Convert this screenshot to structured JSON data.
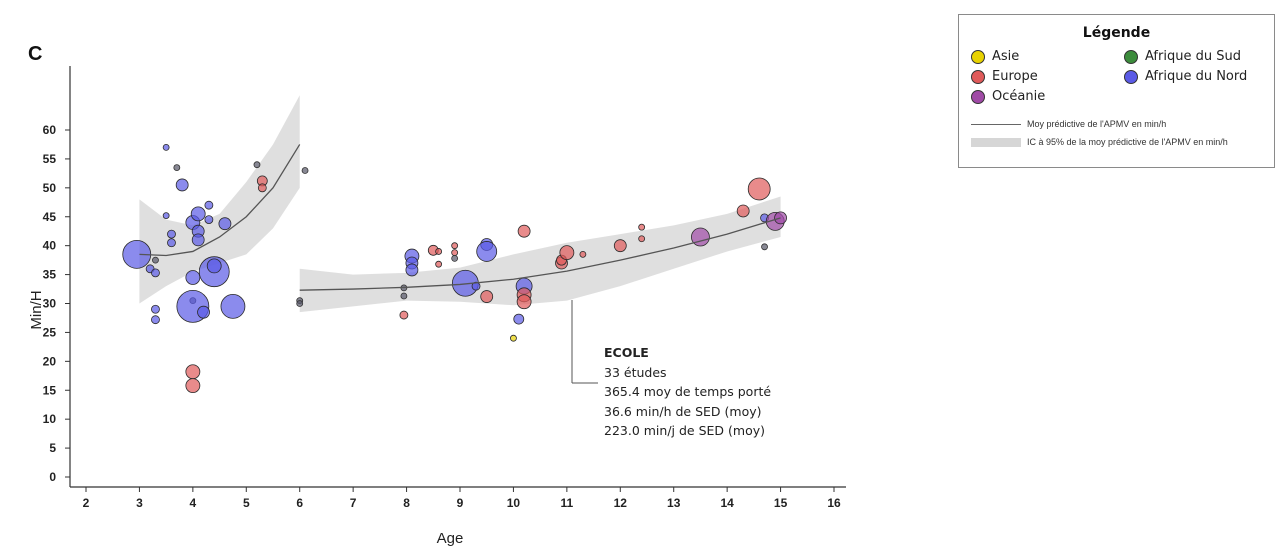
{
  "panel_label": "C",
  "legend": {
    "title": "Légende",
    "regions": [
      {
        "name": "Asie",
        "color": "#e8d200"
      },
      {
        "name": "Afrique du Sud",
        "color": "#3c8c3c"
      },
      {
        "name": "Europe",
        "color": "#e05a5a"
      },
      {
        "name": "Afrique du Nord",
        "color": "#5a5ae6"
      },
      {
        "name": "Océanie",
        "color": "#a04aa6"
      }
    ],
    "line_label": "Moy prédictive de l'APMV en min/h",
    "band_label": "IC à 95% de la moy prédictive de l'APMV en min/h"
  },
  "annotation": {
    "title": "ECOLE",
    "lines": [
      "33 études",
      "365.4 moy de temps porté",
      "36.6 min/h de SED (moy)",
      "223.0 min/j de SED (moy)"
    ]
  },
  "chart_data": {
    "type": "scatter",
    "xlabel": "Age",
    "ylabel": "Min/H",
    "xlim": [
      2,
      16
    ],
    "ylim": [
      0,
      62
    ],
    "x_ticks": [
      2,
      3,
      4,
      5,
      6,
      7,
      8,
      9,
      10,
      11,
      12,
      13,
      14,
      15,
      16
    ],
    "y_ticks": [
      0,
      5,
      10,
      15,
      20,
      25,
      30,
      35,
      40,
      45,
      50,
      55,
      60
    ],
    "colors": {
      "Asie": "#e8d200",
      "Afrique du Sud": "#3c8c3c",
      "Europe": "#e05a5a",
      "Afrique du Nord": "#5a5ae6",
      "Océanie": "#a04aa6",
      "dark": "#555566"
    },
    "fit_lines": [
      {
        "x": [
          3.0,
          3.5,
          4.0,
          4.5,
          5.0,
          5.5,
          6.0
        ],
        "y": [
          38.5,
          38.3,
          39.0,
          41.5,
          45.0,
          50.0,
          57.5
        ],
        "lower": [
          30.0,
          33.0,
          35.5,
          37.0,
          38.5,
          43.0,
          50.0
        ],
        "upper": [
          48.0,
          44.5,
          43.5,
          45.5,
          51.0,
          57.5,
          66.0
        ]
      },
      {
        "x": [
          6.0,
          7.0,
          8.0,
          9.0,
          10.0,
          11.0,
          12.0,
          13.0,
          14.0,
          15.0
        ],
        "y": [
          32.3,
          32.5,
          32.8,
          33.3,
          34.2,
          35.6,
          37.5,
          39.6,
          42.0,
          44.8
        ],
        "lower": [
          28.5,
          29.5,
          30.5,
          30.3,
          29.7,
          30.5,
          33.0,
          36.0,
          39.0,
          41.5
        ],
        "upper": [
          36.0,
          35.0,
          35.3,
          36.2,
          38.5,
          40.5,
          42.0,
          43.5,
          45.5,
          48.5
        ]
      }
    ],
    "points": [
      {
        "x": 2.95,
        "y": 38.5,
        "r": 14,
        "region": "Afrique du Nord"
      },
      {
        "x": 3.2,
        "y": 36.0,
        "r": 4,
        "region": "Afrique du Nord"
      },
      {
        "x": 3.3,
        "y": 37.5,
        "r": 3,
        "region": "dark"
      },
      {
        "x": 3.3,
        "y": 35.3,
        "r": 4,
        "region": "Afrique du Nord"
      },
      {
        "x": 3.3,
        "y": 29.0,
        "r": 4,
        "region": "Afrique du Nord"
      },
      {
        "x": 3.3,
        "y": 27.2,
        "r": 4,
        "region": "Afrique du Nord"
      },
      {
        "x": 3.5,
        "y": 57.0,
        "r": 3,
        "region": "Afrique du Nord"
      },
      {
        "x": 3.5,
        "y": 45.2,
        "r": 3,
        "region": "Afrique du Nord"
      },
      {
        "x": 3.6,
        "y": 42.0,
        "r": 4,
        "region": "Afrique du Nord"
      },
      {
        "x": 3.6,
        "y": 40.5,
        "r": 4,
        "region": "Afrique du Nord"
      },
      {
        "x": 3.7,
        "y": 53.5,
        "r": 3,
        "region": "dark"
      },
      {
        "x": 3.8,
        "y": 50.5,
        "r": 6,
        "region": "Afrique du Nord"
      },
      {
        "x": 4.0,
        "y": 44.0,
        "r": 7,
        "region": "Afrique du Nord"
      },
      {
        "x": 4.1,
        "y": 45.5,
        "r": 7,
        "region": "Afrique du Nord"
      },
      {
        "x": 4.1,
        "y": 42.5,
        "r": 6,
        "region": "Afrique du Nord"
      },
      {
        "x": 4.1,
        "y": 41.0,
        "r": 6,
        "region": "Afrique du Nord"
      },
      {
        "x": 4.0,
        "y": 34.5,
        "r": 7,
        "region": "Afrique du Nord"
      },
      {
        "x": 4.0,
        "y": 30.5,
        "r": 3,
        "region": "dark"
      },
      {
        "x": 4.0,
        "y": 29.5,
        "r": 16,
        "region": "Afrique du Nord"
      },
      {
        "x": 4.0,
        "y": 18.2,
        "r": 7,
        "region": "Europe"
      },
      {
        "x": 4.0,
        "y": 15.8,
        "r": 7,
        "region": "Europe"
      },
      {
        "x": 4.2,
        "y": 28.5,
        "r": 6,
        "region": "Afrique du Nord"
      },
      {
        "x": 4.3,
        "y": 47.0,
        "r": 4,
        "region": "Afrique du Nord"
      },
      {
        "x": 4.3,
        "y": 44.5,
        "r": 4,
        "region": "Afrique du Nord"
      },
      {
        "x": 4.4,
        "y": 35.5,
        "r": 15,
        "region": "Afrique du Nord"
      },
      {
        "x": 4.4,
        "y": 36.5,
        "r": 7,
        "region": "Afrique du Nord"
      },
      {
        "x": 4.6,
        "y": 43.8,
        "r": 6,
        "region": "Afrique du Nord"
      },
      {
        "x": 4.75,
        "y": 29.5,
        "r": 12,
        "region": "Afrique du Nord"
      },
      {
        "x": 5.2,
        "y": 54.0,
        "r": 3,
        "region": "dark"
      },
      {
        "x": 5.3,
        "y": 51.2,
        "r": 5,
        "region": "Europe"
      },
      {
        "x": 5.3,
        "y": 50.0,
        "r": 4,
        "region": "Europe"
      },
      {
        "x": 6.0,
        "y": 30.5,
        "r": 3,
        "region": "dark"
      },
      {
        "x": 6.0,
        "y": 30.0,
        "r": 3,
        "region": "dark"
      },
      {
        "x": 6.1,
        "y": 53.0,
        "r": 3,
        "region": "dark"
      },
      {
        "x": 7.95,
        "y": 32.7,
        "r": 3,
        "region": "dark"
      },
      {
        "x": 7.95,
        "y": 31.3,
        "r": 3,
        "region": "dark"
      },
      {
        "x": 7.95,
        "y": 28.0,
        "r": 4,
        "region": "Europe"
      },
      {
        "x": 8.1,
        "y": 38.2,
        "r": 7,
        "region": "Afrique du Nord"
      },
      {
        "x": 8.1,
        "y": 37.0,
        "r": 6,
        "region": "Afrique du Nord"
      },
      {
        "x": 8.1,
        "y": 35.8,
        "r": 6,
        "region": "Afrique du Nord"
      },
      {
        "x": 8.5,
        "y": 39.2,
        "r": 5,
        "region": "Europe"
      },
      {
        "x": 8.6,
        "y": 39.0,
        "r": 3,
        "region": "Europe"
      },
      {
        "x": 8.6,
        "y": 36.8,
        "r": 3,
        "region": "Europe"
      },
      {
        "x": 8.9,
        "y": 40.0,
        "r": 3,
        "region": "Europe"
      },
      {
        "x": 8.9,
        "y": 38.8,
        "r": 3,
        "region": "Europe"
      },
      {
        "x": 8.9,
        "y": 37.8,
        "r": 3,
        "region": "dark"
      },
      {
        "x": 9.1,
        "y": 33.5,
        "r": 13,
        "region": "Afrique du Nord"
      },
      {
        "x": 9.3,
        "y": 33.0,
        "r": 4,
        "region": "Afrique du Nord"
      },
      {
        "x": 9.5,
        "y": 40.2,
        "r": 6,
        "region": "Afrique du Nord"
      },
      {
        "x": 9.5,
        "y": 39.0,
        "r": 10,
        "region": "Afrique du Nord"
      },
      {
        "x": 9.5,
        "y": 31.2,
        "r": 6,
        "region": "Europe"
      },
      {
        "x": 10.0,
        "y": 24.0,
        "r": 3,
        "region": "Asie"
      },
      {
        "x": 10.1,
        "y": 27.3,
        "r": 5,
        "region": "Afrique du Nord"
      },
      {
        "x": 10.2,
        "y": 42.5,
        "r": 6,
        "region": "Europe"
      },
      {
        "x": 10.2,
        "y": 33.0,
        "r": 8,
        "region": "Afrique du Nord"
      },
      {
        "x": 10.2,
        "y": 31.5,
        "r": 7,
        "region": "Europe"
      },
      {
        "x": 10.2,
        "y": 30.3,
        "r": 7,
        "region": "Europe"
      },
      {
        "x": 10.9,
        "y": 37.0,
        "r": 6,
        "region": "Europe"
      },
      {
        "x": 10.9,
        "y": 37.5,
        "r": 5,
        "region": "Europe"
      },
      {
        "x": 11.0,
        "y": 38.8,
        "r": 7,
        "region": "Europe"
      },
      {
        "x": 11.3,
        "y": 38.5,
        "r": 3,
        "region": "Europe"
      },
      {
        "x": 12.0,
        "y": 40.0,
        "r": 6,
        "region": "Europe"
      },
      {
        "x": 12.4,
        "y": 43.2,
        "r": 3,
        "region": "Europe"
      },
      {
        "x": 12.4,
        "y": 41.2,
        "r": 3,
        "region": "Europe"
      },
      {
        "x": 13.5,
        "y": 41.5,
        "r": 9,
        "region": "Océanie"
      },
      {
        "x": 14.3,
        "y": 46.0,
        "r": 6,
        "region": "Europe"
      },
      {
        "x": 14.6,
        "y": 49.8,
        "r": 11,
        "region": "Europe"
      },
      {
        "x": 14.7,
        "y": 44.8,
        "r": 4,
        "region": "Afrique du Nord"
      },
      {
        "x": 14.7,
        "y": 39.8,
        "r": 3,
        "region": "dark"
      },
      {
        "x": 14.9,
        "y": 44.2,
        "r": 9,
        "region": "Océanie"
      },
      {
        "x": 15.0,
        "y": 44.8,
        "r": 6,
        "region": "Océanie"
      }
    ]
  }
}
